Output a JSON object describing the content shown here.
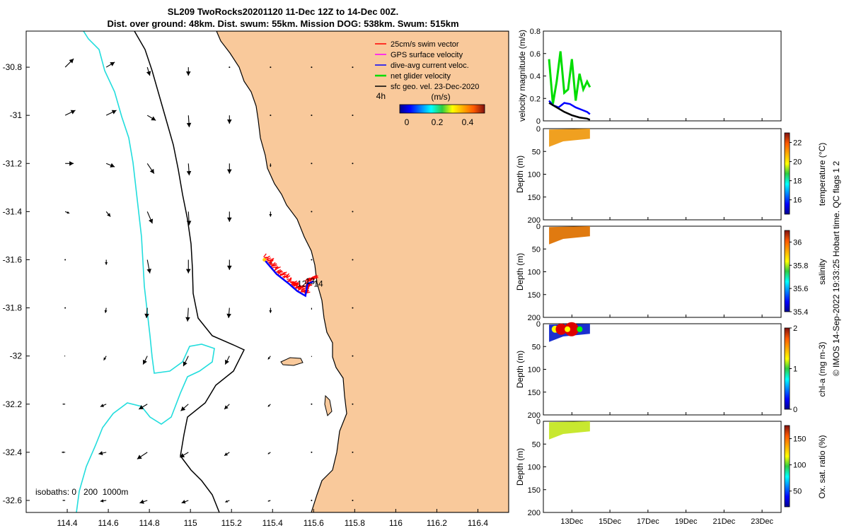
{
  "title": {
    "line1": "SL209 TwoRocks20201120 11-Dec 12Z to 14-Dec 00Z.",
    "line2": "Dist. over ground: 48km. Dist. swum: 55km. Mission DOG: 538km. Swum: 515km"
  },
  "map": {
    "legend": [
      {
        "label": "25cm/s swim vector",
        "color": "#ff0000"
      },
      {
        "label": "GPS surface velocity",
        "color": "#ff00ff"
      },
      {
        "label": "dive-avg current veloc.",
        "color": "#0000ff"
      },
      {
        "label": "net glider velocity",
        "color": "#00dd00"
      },
      {
        "label": "sfc geo. vel. 23-Dec-2020",
        "color": "#000000"
      }
    ],
    "speed_units": "(m/s)",
    "speed_ticks": [
      "0",
      "0.2",
      "0.4"
    ],
    "time_label": "4h",
    "track_labels": [
      "12",
      "13",
      "14"
    ],
    "isobaths_label": "isobaths: 0   200  1000m",
    "x_ticks": [
      "114.4",
      "114.6",
      "114.8",
      "115",
      "115.2",
      "115.4",
      "115.6",
      "115.8",
      "116",
      "116.2",
      "116.4"
    ],
    "y_ticks": [
      "-30.8",
      "-31",
      "-31.2",
      "-31.4",
      "-31.6",
      "-31.8",
      "-32",
      "-32.2",
      "-32.4",
      "-32.6"
    ],
    "colors": {
      "land": "#f9c99b",
      "shelf": "#000000",
      "deep": "#22dddd",
      "track_red": "#ff0000",
      "track_blue": "#0000ff"
    }
  },
  "velocity_panel": {
    "ylabel": "velocity magnitude (m/s)",
    "y_ticks": [
      "0",
      "0.2",
      "0.4",
      "0.6",
      "0.8"
    ]
  },
  "sections": [
    {
      "ylabel": "Depth (m)",
      "cbar_label": "temperature (°C)",
      "cbar_ticks": [
        "16",
        "18",
        "20",
        "22"
      ],
      "y_ticks": [
        "0",
        "50",
        "100",
        "150",
        "200"
      ]
    },
    {
      "ylabel": "Depth (m)",
      "cbar_label": "salinity",
      "cbar_ticks": [
        "35.4",
        "35.6",
        "35.8",
        "36"
      ],
      "y_ticks": [
        "0",
        "50",
        "100",
        "150",
        "200"
      ]
    },
    {
      "ylabel": "Depth (m)",
      "cbar_label": "chl-a (mg m-3)",
      "cbar_ticks": [
        "0",
        "1",
        "2"
      ],
      "y_ticks": [
        "0",
        "50",
        "100",
        "150",
        "200"
      ]
    },
    {
      "ylabel": "Depth (m)",
      "cbar_label": "Ox. sat. ratio (%)",
      "cbar_ticks": [
        "50",
        "100",
        "150"
      ],
      "y_ticks": [
        "0",
        "50",
        "100",
        "150",
        "200"
      ]
    }
  ],
  "time_ticks": [
    "13Dec",
    "15Dec",
    "17Dec",
    "19Dec",
    "21Dec",
    "23Dec"
  ],
  "credit": "© IMOS 14-Sep-2022 19:33:25 Hobart time. QC flags 1  2",
  "chart_data": [
    {
      "type": "scatter",
      "title": "SL209 TwoRocks20201120 11-Dec 12Z to 14-Dec 00Z.",
      "xlim": [
        114.2,
        116.55
      ],
      "ylim": [
        -32.65,
        -30.65
      ],
      "glider_track": {
        "x": [
          115.36,
          115.42,
          115.48,
          115.52,
          115.56,
          115.57,
          115.6
        ],
        "y": [
          -31.6,
          -31.66,
          -31.7,
          -31.73,
          -31.75,
          -31.7,
          -31.69
        ]
      },
      "track_day_labels": [
        {
          "label": "12",
          "x": 115.52,
          "y": -31.7
        },
        {
          "label": "13",
          "x": 115.56,
          "y": -31.69
        },
        {
          "label": "14",
          "x": 115.6,
          "y": -31.7
        }
      ],
      "surface_currents": {
        "lon": [
          114.39,
          114.59,
          114.79,
          114.99,
          115.19,
          115.39,
          115.59,
          115.79
        ],
        "lat": [
          -30.8,
          -31.0,
          -31.2,
          -31.4,
          -31.6,
          -31.8,
          -32.0,
          -32.2,
          -32.4,
          -32.6
        ],
        "u": [
          [
            0.1,
            0.1,
            0.03,
            0.0,
            0.0,
            0.0,
            0.0,
            0.0
          ],
          [
            0.12,
            0.12,
            0.1,
            0.01,
            0.0,
            0.0,
            0.0,
            0.0
          ],
          [
            0.1,
            0.1,
            0.08,
            0.01,
            0.0,
            0.0,
            0.0,
            0.0
          ],
          [
            0.05,
            0.05,
            0.06,
            0.01,
            0.0,
            0.0,
            0.0,
            0.0
          ],
          [
            0.0,
            0.0,
            0.03,
            0.0,
            0.0,
            0.0,
            0.0,
            0.0
          ],
          [
            0.0,
            -0.01,
            -0.01,
            -0.01,
            -0.01,
            0.0,
            0.0,
            0.0
          ],
          [
            -0.01,
            -0.03,
            -0.05,
            -0.06,
            -0.05,
            -0.03,
            0.0,
            0.0
          ],
          [
            -0.03,
            -0.07,
            -0.1,
            -0.09,
            -0.06,
            -0.03,
            0.0,
            0.0
          ],
          [
            -0.04,
            -0.09,
            -0.12,
            -0.1,
            -0.06,
            -0.03,
            0.0,
            0.0
          ],
          [
            -0.03,
            -0.07,
            -0.09,
            -0.08,
            -0.05,
            -0.03,
            0.0,
            0.0
          ]
        ],
        "v": [
          [
            0.1,
            0.06,
            -0.1,
            -0.1,
            0.0,
            0.0,
            0.0,
            0.0
          ],
          [
            0.06,
            0.06,
            -0.06,
            -0.14,
            -0.1,
            0.0,
            0.0,
            0.0
          ],
          [
            0.0,
            -0.04,
            -0.12,
            -0.14,
            -0.12,
            -0.04,
            0.0,
            0.0
          ],
          [
            -0.02,
            -0.06,
            -0.14,
            -0.16,
            -0.12,
            -0.06,
            0.0,
            0.0
          ],
          [
            0.0,
            -0.06,
            -0.16,
            -0.16,
            -0.12,
            -0.06,
            0.0,
            0.0
          ],
          [
            0.0,
            -0.06,
            -0.12,
            -0.16,
            -0.12,
            -0.06,
            -0.02,
            0.0
          ],
          [
            0.0,
            -0.05,
            -0.1,
            -0.12,
            -0.1,
            -0.04,
            -0.01,
            0.0
          ],
          [
            0.0,
            -0.03,
            -0.06,
            -0.08,
            -0.06,
            -0.03,
            0.0,
            0.0
          ],
          [
            0.0,
            -0.02,
            -0.08,
            -0.06,
            -0.04,
            -0.02,
            0.0,
            0.0
          ],
          [
            0.0,
            -0.01,
            -0.03,
            -0.03,
            -0.02,
            -0.01,
            0.0,
            0.0
          ]
        ]
      }
    },
    {
      "type": "line",
      "ylabel": "velocity magnitude (m/s)",
      "ylim": [
        0,
        0.8
      ],
      "xlim": [
        11.5,
        24.0
      ],
      "x_unit": "day of December 2020",
      "series": [
        {
          "name": "net glider velocity",
          "color": "#00dd00",
          "x": [
            11.8,
            12.0,
            12.2,
            12.4,
            12.6,
            12.8,
            13.0,
            13.2,
            13.4,
            13.6,
            13.8,
            13.95
          ],
          "y": [
            0.55,
            0.15,
            0.35,
            0.62,
            0.25,
            0.28,
            0.55,
            0.18,
            0.42,
            0.28,
            0.35,
            0.3
          ]
        },
        {
          "name": "dive-avg current veloc.",
          "color": "#0000ff",
          "x": [
            11.8,
            12.0,
            12.3,
            12.6,
            12.9,
            13.2,
            13.5,
            13.8,
            13.95
          ],
          "y": [
            0.18,
            0.14,
            0.12,
            0.16,
            0.15,
            0.12,
            0.1,
            0.08,
            0.06
          ]
        },
        {
          "name": "sfc geo. vel. 23-Dec-2020",
          "color": "#000000",
          "x": [
            11.8,
            12.2,
            12.6,
            13.0,
            13.4,
            13.8,
            13.95
          ],
          "y": [
            0.16,
            0.12,
            0.08,
            0.05,
            0.03,
            0.02,
            0.01
          ]
        }
      ]
    },
    {
      "type": "heatmap",
      "ylabel": "Depth (m)",
      "ylim": [
        200,
        0
      ],
      "variable": "temperature (°C)",
      "clim": [
        14.5,
        23
      ],
      "x_range": [
        11.8,
        13.95
      ],
      "depth_range": [
        0,
        40
      ],
      "typical_value": 21.5
    },
    {
      "type": "heatmap",
      "ylabel": "Depth (m)",
      "ylim": [
        200,
        0
      ],
      "variable": "salinity",
      "clim": [
        35.4,
        36.1
      ],
      "x_range": [
        11.8,
        13.95
      ],
      "depth_range": [
        0,
        40
      ],
      "typical_value": 36.0
    },
    {
      "type": "heatmap",
      "ylabel": "Depth (m)",
      "ylim": [
        200,
        0
      ],
      "variable": "chl-a (mg m-3)",
      "clim": [
        0,
        2
      ],
      "x_range": [
        11.8,
        13.95
      ],
      "depth_range": [
        0,
        40
      ],
      "typical_value": 0.3
    },
    {
      "type": "heatmap",
      "ylabel": "Depth (m)",
      "ylim": [
        200,
        0
      ],
      "variable": "Ox. sat. ratio (%)",
      "clim": [
        20,
        175
      ],
      "x_range": [
        11.8,
        13.95
      ],
      "depth_range": [
        0,
        40
      ],
      "typical_value": 112
    }
  ]
}
